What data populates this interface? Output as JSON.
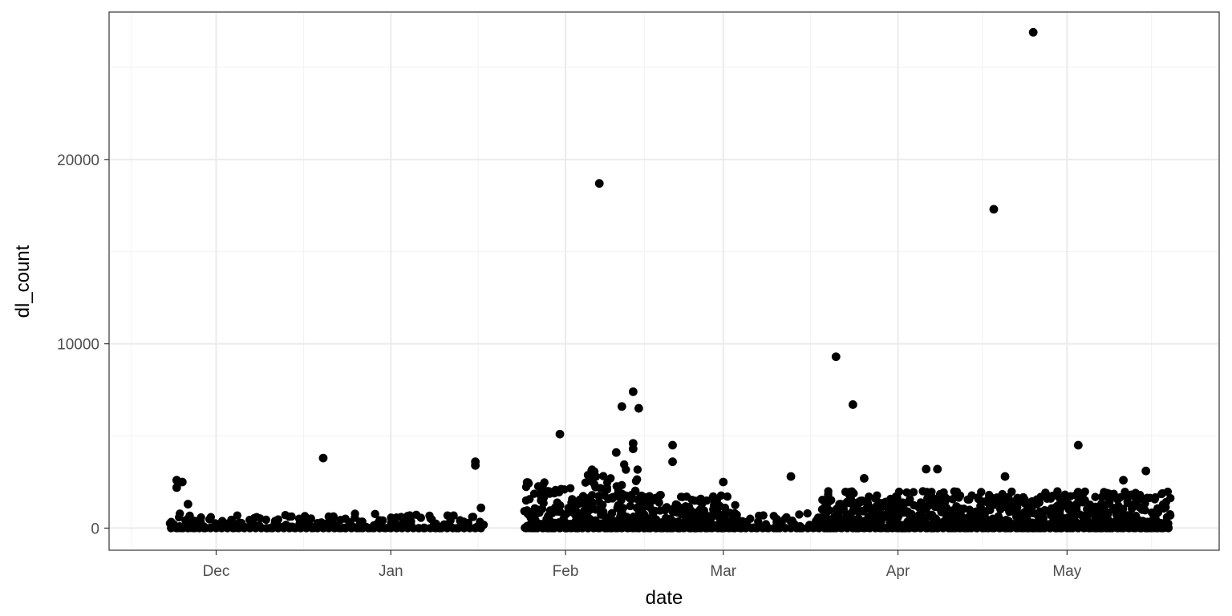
{
  "chart_data": {
    "type": "scatter",
    "title": "",
    "xlabel": "date",
    "ylabel": "dl_count",
    "x_ticks": [
      "Dec",
      "Jan",
      "Feb",
      "Mar",
      "Apr",
      "May"
    ],
    "x_tick_dates": [
      "2017-12-01",
      "2018-01-01",
      "2018-02-01",
      "2018-03-01",
      "2018-04-01",
      "2018-05-01"
    ],
    "xlim": [
      "2017-11-12",
      "2018-05-28"
    ],
    "y_ticks": [
      0,
      10000,
      20000
    ],
    "ylim": [
      -1200,
      28000
    ],
    "grid": true,
    "point_color": "#000000",
    "points": [
      {
        "date": "2017-11-24",
        "dl_count": 2600
      },
      {
        "date": "2017-11-24",
        "dl_count": 2200
      },
      {
        "date": "2017-11-25",
        "dl_count": 2500
      },
      {
        "date": "2017-11-26",
        "dl_count": 1300
      },
      {
        "date": "2017-11-26",
        "dl_count": 500
      },
      {
        "date": "2017-11-27",
        "dl_count": 400
      },
      {
        "date": "2017-11-28",
        "dl_count": 300
      },
      {
        "date": "2017-12-20",
        "dl_count": 3800
      },
      {
        "date": "2018-01-16",
        "dl_count": 3600
      },
      {
        "date": "2018-01-16",
        "dl_count": 3400
      },
      {
        "date": "2018-01-17",
        "dl_count": 1100
      },
      {
        "date": "2018-01-31",
        "dl_count": 5100
      },
      {
        "date": "2018-01-28",
        "dl_count": 2100
      },
      {
        "date": "2018-01-30",
        "dl_count": 1900
      },
      {
        "date": "2018-02-07",
        "dl_count": 18700
      },
      {
        "date": "2018-02-10",
        "dl_count": 4100
      },
      {
        "date": "2018-02-11",
        "dl_count": 6600
      },
      {
        "date": "2018-02-13",
        "dl_count": 7400
      },
      {
        "date": "2018-02-14",
        "dl_count": 6500
      },
      {
        "date": "2018-02-13",
        "dl_count": 4600
      },
      {
        "date": "2018-02-13",
        "dl_count": 4300
      },
      {
        "date": "2018-02-20",
        "dl_count": 4500
      },
      {
        "date": "2018-02-20",
        "dl_count": 3600
      },
      {
        "date": "2018-03-01",
        "dl_count": 2500
      },
      {
        "date": "2018-03-13",
        "dl_count": 2800
      },
      {
        "date": "2018-03-21",
        "dl_count": 9300
      },
      {
        "date": "2018-03-24",
        "dl_count": 6700
      },
      {
        "date": "2018-03-26",
        "dl_count": 2700
      },
      {
        "date": "2018-04-06",
        "dl_count": 3200
      },
      {
        "date": "2018-04-08",
        "dl_count": 3200
      },
      {
        "date": "2018-04-18",
        "dl_count": 17300
      },
      {
        "date": "2018-04-25",
        "dl_count": 26900
      },
      {
        "date": "2018-04-20",
        "dl_count": 2800
      },
      {
        "date": "2018-05-03",
        "dl_count": 4500
      },
      {
        "date": "2018-05-11",
        "dl_count": 2600
      },
      {
        "date": "2018-05-15",
        "dl_count": 3100
      }
    ],
    "dense_band": [
      {
        "from": "2017-11-23",
        "to": "2018-01-17",
        "max": 800
      },
      {
        "from": "2018-01-25",
        "to": "2018-02-05",
        "max": 2500
      },
      {
        "from": "2018-02-05",
        "to": "2018-02-14",
        "max": 3500
      },
      {
        "from": "2018-02-14",
        "to": "2018-03-03",
        "max": 1800
      },
      {
        "from": "2018-03-03",
        "to": "2018-03-19",
        "max": 800
      },
      {
        "from": "2018-03-19",
        "to": "2018-04-16",
        "max": 2000
      },
      {
        "from": "2018-04-17",
        "to": "2018-05-19",
        "max": 2000
      }
    ]
  }
}
